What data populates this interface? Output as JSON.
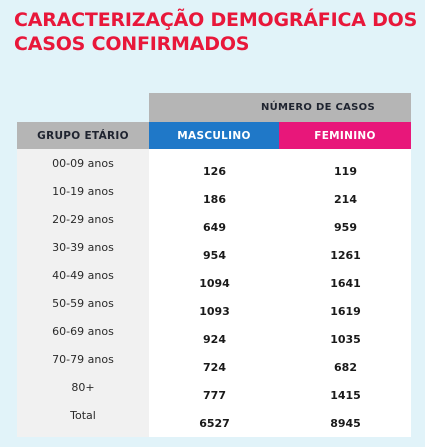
{
  "title": "CARACTERIZAÇÃO DEMOGRÁFICA DOS CASOS CONFIRMADOS",
  "table": {
    "group_header": "NÚMERO DE CASOS",
    "col_age": "GRUPO ETÁRIO",
    "col_m": "MASCULINO",
    "col_f": "FEMININO",
    "rows": [
      {
        "age": "00-09 anos",
        "m": "126",
        "f": "119"
      },
      {
        "age": "10-19 anos",
        "m": "186",
        "f": "214"
      },
      {
        "age": "20-29 anos",
        "m": "649",
        "f": "959"
      },
      {
        "age": "30-39 anos",
        "m": "954",
        "f": "1261"
      },
      {
        "age": "40-49 anos",
        "m": "1094",
        "f": "1641"
      },
      {
        "age": "50-59 anos",
        "m": "1093",
        "f": "1619"
      },
      {
        "age": "60-69 anos",
        "m": "924",
        "f": "1035"
      },
      {
        "age": "70-79 anos",
        "m": "724",
        "f": "682"
      },
      {
        "age": "80+",
        "m": "777",
        "f": "1415"
      },
      {
        "age": "Total",
        "m": "6527",
        "f": "8945"
      }
    ]
  },
  "colors": {
    "title": "#e8173a",
    "masculino": "#1f78c8",
    "feminino": "#e8177a",
    "header_gray": "#b5b5b5",
    "background": "#e1f3f9"
  }
}
